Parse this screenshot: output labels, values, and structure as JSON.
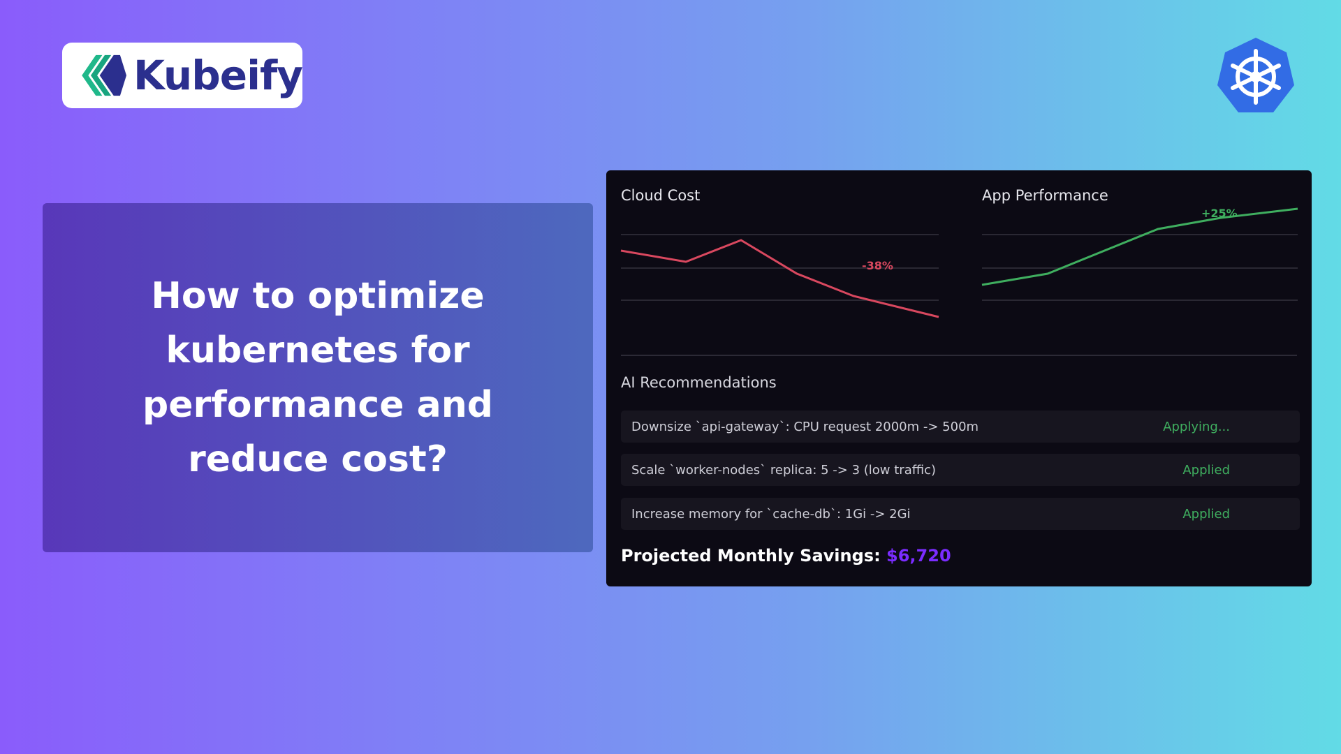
{
  "brand": {
    "name": "Kubeify",
    "colors": {
      "mark_green": "#1fb88a",
      "mark_navy": "#2b2f8e",
      "k8s_blue": "#326ce5"
    },
    "secondary_icon": "kubernetes-helm-icon"
  },
  "hero": {
    "title": "How to optimize kubernetes for performance and reduce cost?"
  },
  "dashboard": {
    "cloud_cost": {
      "title": "Cloud Cost",
      "change_label": "-38%",
      "color": "#d9485f"
    },
    "app_performance": {
      "title": "App Performance",
      "change_label": "+25%",
      "color": "#3fae5f"
    },
    "recommendations": {
      "title": "AI Recommendations",
      "items": [
        {
          "text": "Downsize `api-gateway`: CPU request 2000m -> 500m",
          "status": "Applying..."
        },
        {
          "text": "Scale `worker-nodes` replica: 5 -> 3 (low traffic)",
          "status": "Applied"
        },
        {
          "text": "Increase memory for `cache-db`: 1Gi -> 2Gi",
          "status": "Applied"
        }
      ]
    },
    "savings": {
      "label": "Projected Monthly Savings:",
      "value": "$6,720",
      "value_color": "#7b2cff"
    }
  }
}
